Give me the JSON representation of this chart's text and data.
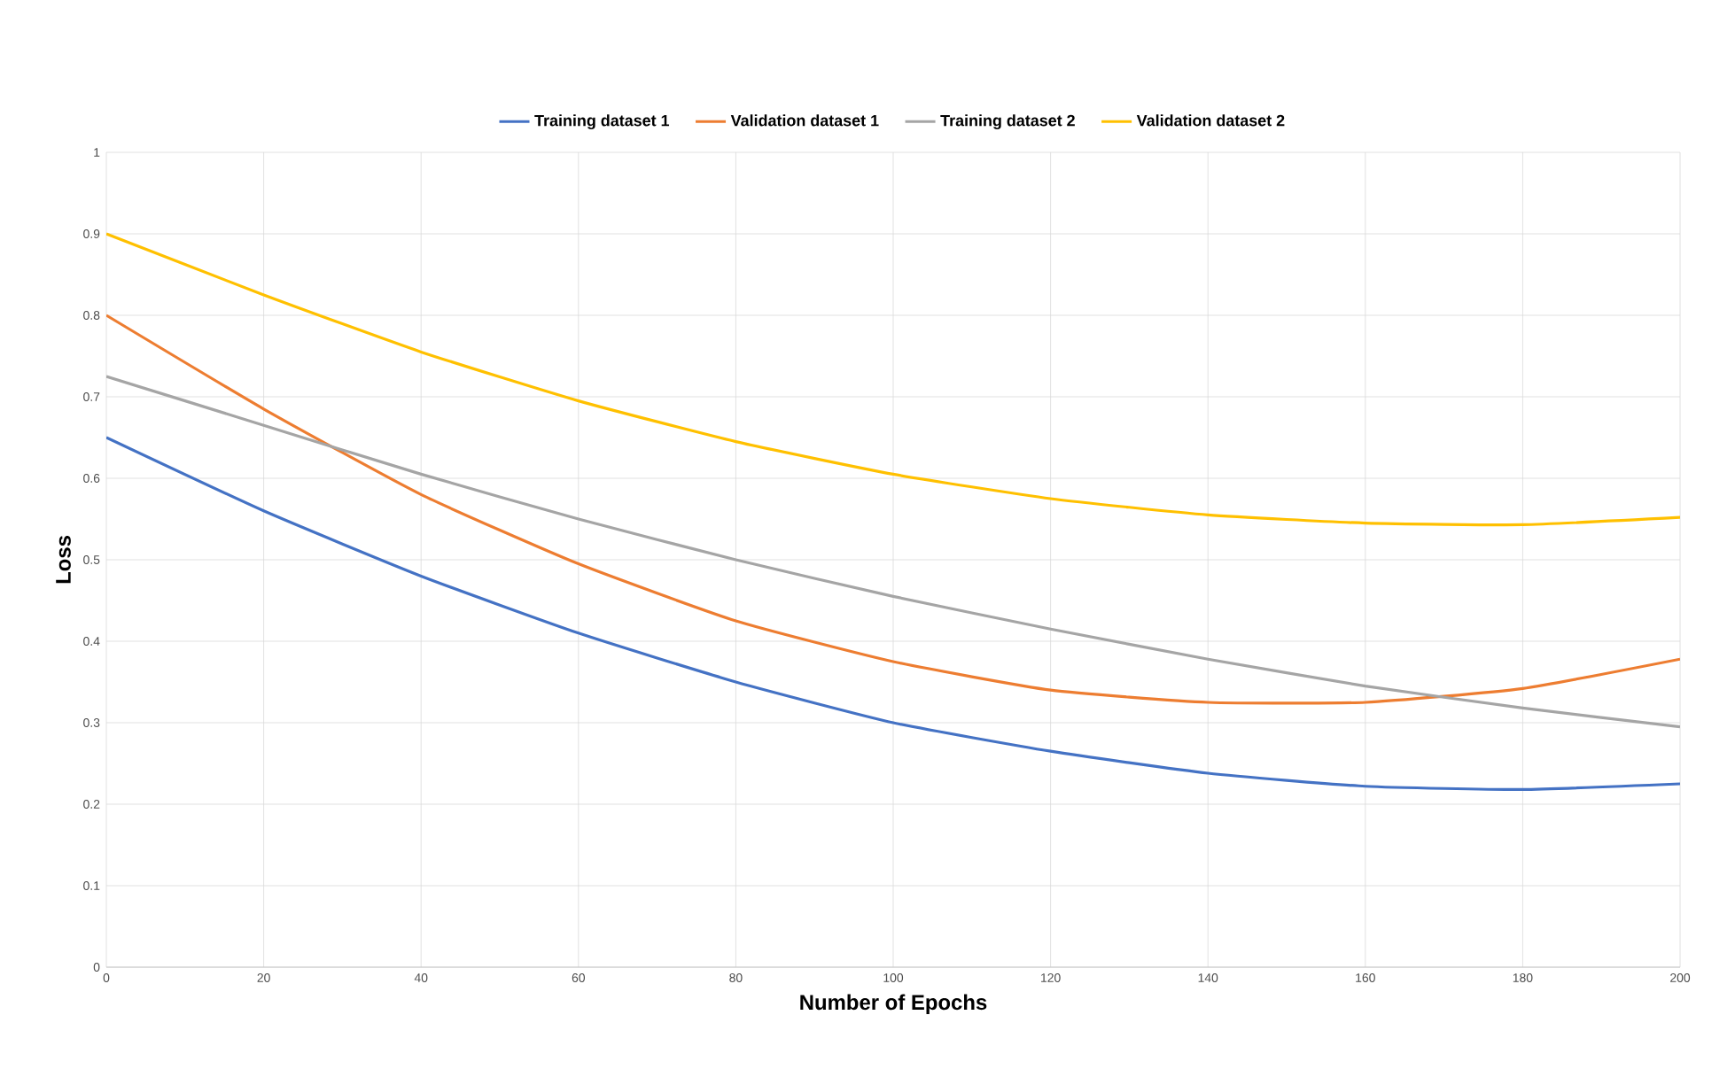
{
  "chart_data": {
    "type": "line",
    "xlabel": "Number of Epochs",
    "ylabel": "Loss",
    "x": [
      0,
      20,
      40,
      60,
      80,
      100,
      120,
      140,
      160,
      180,
      200
    ],
    "series": [
      {
        "name": "Training dataset 1",
        "color": "#4472c4",
        "values": [
          0.65,
          0.56,
          0.48,
          0.41,
          0.35,
          0.3,
          0.265,
          0.238,
          0.222,
          0.218,
          0.225
        ]
      },
      {
        "name": "Validation dataset 1",
        "color": "#ed7d31",
        "values": [
          0.8,
          0.685,
          0.58,
          0.495,
          0.425,
          0.375,
          0.34,
          0.325,
          0.325,
          0.342,
          0.378
        ]
      },
      {
        "name": "Training dataset 2",
        "color": "#a5a5a5",
        "values": [
          0.725,
          0.665,
          0.605,
          0.55,
          0.5,
          0.455,
          0.415,
          0.378,
          0.345,
          0.318,
          0.295
        ]
      },
      {
        "name": "Validation dataset 2",
        "color": "#ffc000",
        "values": [
          0.9,
          0.825,
          0.755,
          0.695,
          0.645,
          0.605,
          0.575,
          0.555,
          0.545,
          0.543,
          0.552
        ]
      }
    ],
    "xlim": [
      0,
      200
    ],
    "xticks": [
      0,
      20,
      40,
      60,
      80,
      100,
      120,
      140,
      160,
      180,
      200
    ],
    "ylim": [
      0,
      1
    ],
    "yticks": [
      0,
      0.1,
      0.2,
      0.3,
      0.4,
      0.5,
      0.6,
      0.7,
      0.8,
      0.9,
      1
    ],
    "grid": true,
    "legend": "top",
    "marker": "none",
    "line_style": "solid"
  }
}
